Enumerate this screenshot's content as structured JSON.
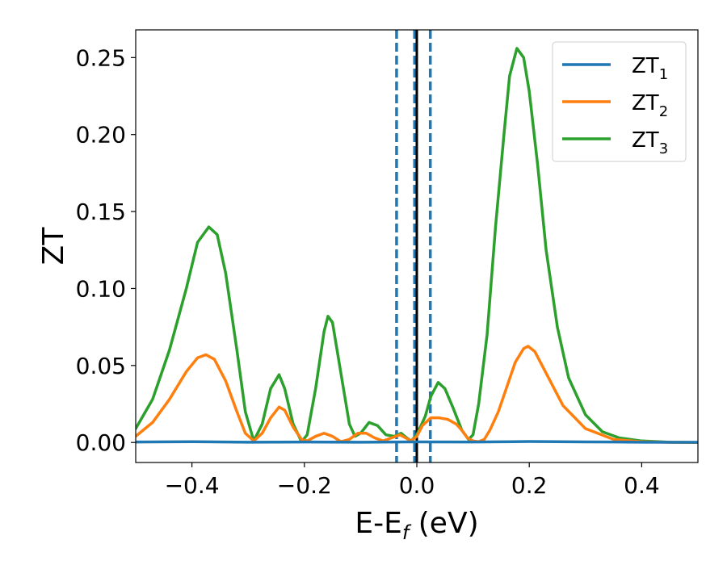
{
  "chart_data": {
    "type": "line",
    "xlabel_main": "E-E",
    "xlabel_sub": "f",
    "xlabel_unit": " (eV)",
    "ylabel": "ZT",
    "xlim": [
      -0.5,
      0.5
    ],
    "ylim": [
      -0.013,
      0.268
    ],
    "x_ticks": [
      -0.4,
      -0.2,
      0.0,
      0.2,
      0.4
    ],
    "x_tick_labels": [
      "−0.4",
      "−0.2",
      "0.0",
      "0.2",
      "0.4"
    ],
    "y_ticks": [
      0.0,
      0.05,
      0.1,
      0.15,
      0.2,
      0.25
    ],
    "y_tick_labels": [
      "0.00",
      "0.05",
      "0.10",
      "0.15",
      "0.20",
      "0.25"
    ],
    "grid": false,
    "legend_position": "top-right",
    "vlines": [
      {
        "x": -0.036,
        "style": "dashed",
        "color": "#1f77b4"
      },
      {
        "x": -0.004,
        "style": "dashed",
        "color": "#1f77b4"
      },
      {
        "x": 0.024,
        "style": "dashed",
        "color": "#1f77b4"
      },
      {
        "x": 0.0,
        "style": "solid",
        "color": "#000000"
      }
    ],
    "series": [
      {
        "name_main": "ZT",
        "name_sub": "1",
        "color": "#1f77b4",
        "points": [
          [
            -0.5,
            0.0003
          ],
          [
            -0.4,
            0.0005
          ],
          [
            -0.3,
            0.0002
          ],
          [
            -0.2,
            0.0003
          ],
          [
            -0.1,
            0.0002
          ],
          [
            0.0,
            0.0004
          ],
          [
            0.1,
            0.0003
          ],
          [
            0.2,
            0.0006
          ],
          [
            0.3,
            0.0004
          ],
          [
            0.4,
            0.0002
          ],
          [
            0.5,
            0.0001
          ]
        ]
      },
      {
        "name_main": "ZT",
        "name_sub": "2",
        "color": "#ff7f0e",
        "points": [
          [
            -0.5,
            0.004
          ],
          [
            -0.47,
            0.013
          ],
          [
            -0.44,
            0.028
          ],
          [
            -0.41,
            0.046
          ],
          [
            -0.39,
            0.055
          ],
          [
            -0.375,
            0.057
          ],
          [
            -0.36,
            0.054
          ],
          [
            -0.34,
            0.04
          ],
          [
            -0.32,
            0.02
          ],
          [
            -0.305,
            0.006
          ],
          [
            -0.29,
            0.001
          ],
          [
            -0.275,
            0.006
          ],
          [
            -0.26,
            0.016
          ],
          [
            -0.245,
            0.023
          ],
          [
            -0.235,
            0.021
          ],
          [
            -0.22,
            0.01
          ],
          [
            -0.205,
            0.002
          ],
          [
            -0.195,
            0.001
          ],
          [
            -0.18,
            0.004
          ],
          [
            -0.165,
            0.006
          ],
          [
            -0.15,
            0.004
          ],
          [
            -0.135,
            0.0005
          ],
          [
            -0.12,
            0.002
          ],
          [
            -0.105,
            0.006
          ],
          [
            -0.09,
            0.006
          ],
          [
            -0.075,
            0.003
          ],
          [
            -0.06,
            0.001
          ],
          [
            -0.045,
            0.003
          ],
          [
            -0.03,
            0.005
          ],
          [
            -0.02,
            0.003
          ],
          [
            -0.01,
            0.001
          ],
          [
            0.0,
            0.004
          ],
          [
            0.01,
            0.011
          ],
          [
            0.025,
            0.016
          ],
          [
            0.04,
            0.016
          ],
          [
            0.055,
            0.015
          ],
          [
            0.07,
            0.012
          ],
          [
            0.08,
            0.008
          ],
          [
            0.09,
            0.003
          ],
          [
            0.1,
            0.001
          ],
          [
            0.11,
            0.0005
          ],
          [
            0.12,
            0.002
          ],
          [
            0.13,
            0.008
          ],
          [
            0.145,
            0.02
          ],
          [
            0.16,
            0.036
          ],
          [
            0.175,
            0.052
          ],
          [
            0.19,
            0.061
          ],
          [
            0.198,
            0.0625
          ],
          [
            0.21,
            0.059
          ],
          [
            0.23,
            0.045
          ],
          [
            0.26,
            0.024
          ],
          [
            0.3,
            0.009
          ],
          [
            0.35,
            0.002
          ],
          [
            0.4,
            0.0005
          ],
          [
            0.45,
            0.0001
          ],
          [
            0.5,
            0.0
          ]
        ]
      },
      {
        "name_main": "ZT",
        "name_sub": "3",
        "color": "#2ca02c",
        "points": [
          [
            -0.5,
            0.009
          ],
          [
            -0.47,
            0.028
          ],
          [
            -0.44,
            0.06
          ],
          [
            -0.41,
            0.1
          ],
          [
            -0.39,
            0.13
          ],
          [
            -0.37,
            0.14
          ],
          [
            -0.355,
            0.135
          ],
          [
            -0.34,
            0.11
          ],
          [
            -0.32,
            0.06
          ],
          [
            -0.305,
            0.02
          ],
          [
            -0.29,
            0.001
          ],
          [
            -0.275,
            0.012
          ],
          [
            -0.26,
            0.035
          ],
          [
            -0.245,
            0.044
          ],
          [
            -0.235,
            0.035
          ],
          [
            -0.22,
            0.012
          ],
          [
            -0.205,
            0.0005
          ],
          [
            -0.195,
            0.005
          ],
          [
            -0.18,
            0.035
          ],
          [
            -0.165,
            0.072
          ],
          [
            -0.158,
            0.082
          ],
          [
            -0.15,
            0.078
          ],
          [
            -0.135,
            0.045
          ],
          [
            -0.12,
            0.012
          ],
          [
            -0.11,
            0.004
          ],
          [
            -0.1,
            0.006
          ],
          [
            -0.085,
            0.013
          ],
          [
            -0.07,
            0.011
          ],
          [
            -0.055,
            0.005
          ],
          [
            -0.04,
            0.004
          ],
          [
            -0.028,
            0.006
          ],
          [
            -0.018,
            0.003
          ],
          [
            -0.01,
            0.001
          ],
          [
            0.0,
            0.005
          ],
          [
            0.015,
            0.017
          ],
          [
            0.025,
            0.03
          ],
          [
            0.038,
            0.039
          ],
          [
            0.05,
            0.035
          ],
          [
            0.065,
            0.022
          ],
          [
            0.08,
            0.008
          ],
          [
            0.092,
            0.002
          ],
          [
            0.1,
            0.005
          ],
          [
            0.11,
            0.025
          ],
          [
            0.125,
            0.07
          ],
          [
            0.14,
            0.14
          ],
          [
            0.155,
            0.2
          ],
          [
            0.165,
            0.238
          ],
          [
            0.178,
            0.256
          ],
          [
            0.19,
            0.25
          ],
          [
            0.2,
            0.228
          ],
          [
            0.215,
            0.18
          ],
          [
            0.23,
            0.125
          ],
          [
            0.25,
            0.075
          ],
          [
            0.27,
            0.042
          ],
          [
            0.3,
            0.018
          ],
          [
            0.33,
            0.007
          ],
          [
            0.36,
            0.003
          ],
          [
            0.4,
            0.001
          ],
          [
            0.45,
            0.0002
          ],
          [
            0.5,
            0.0
          ]
        ]
      }
    ]
  }
}
